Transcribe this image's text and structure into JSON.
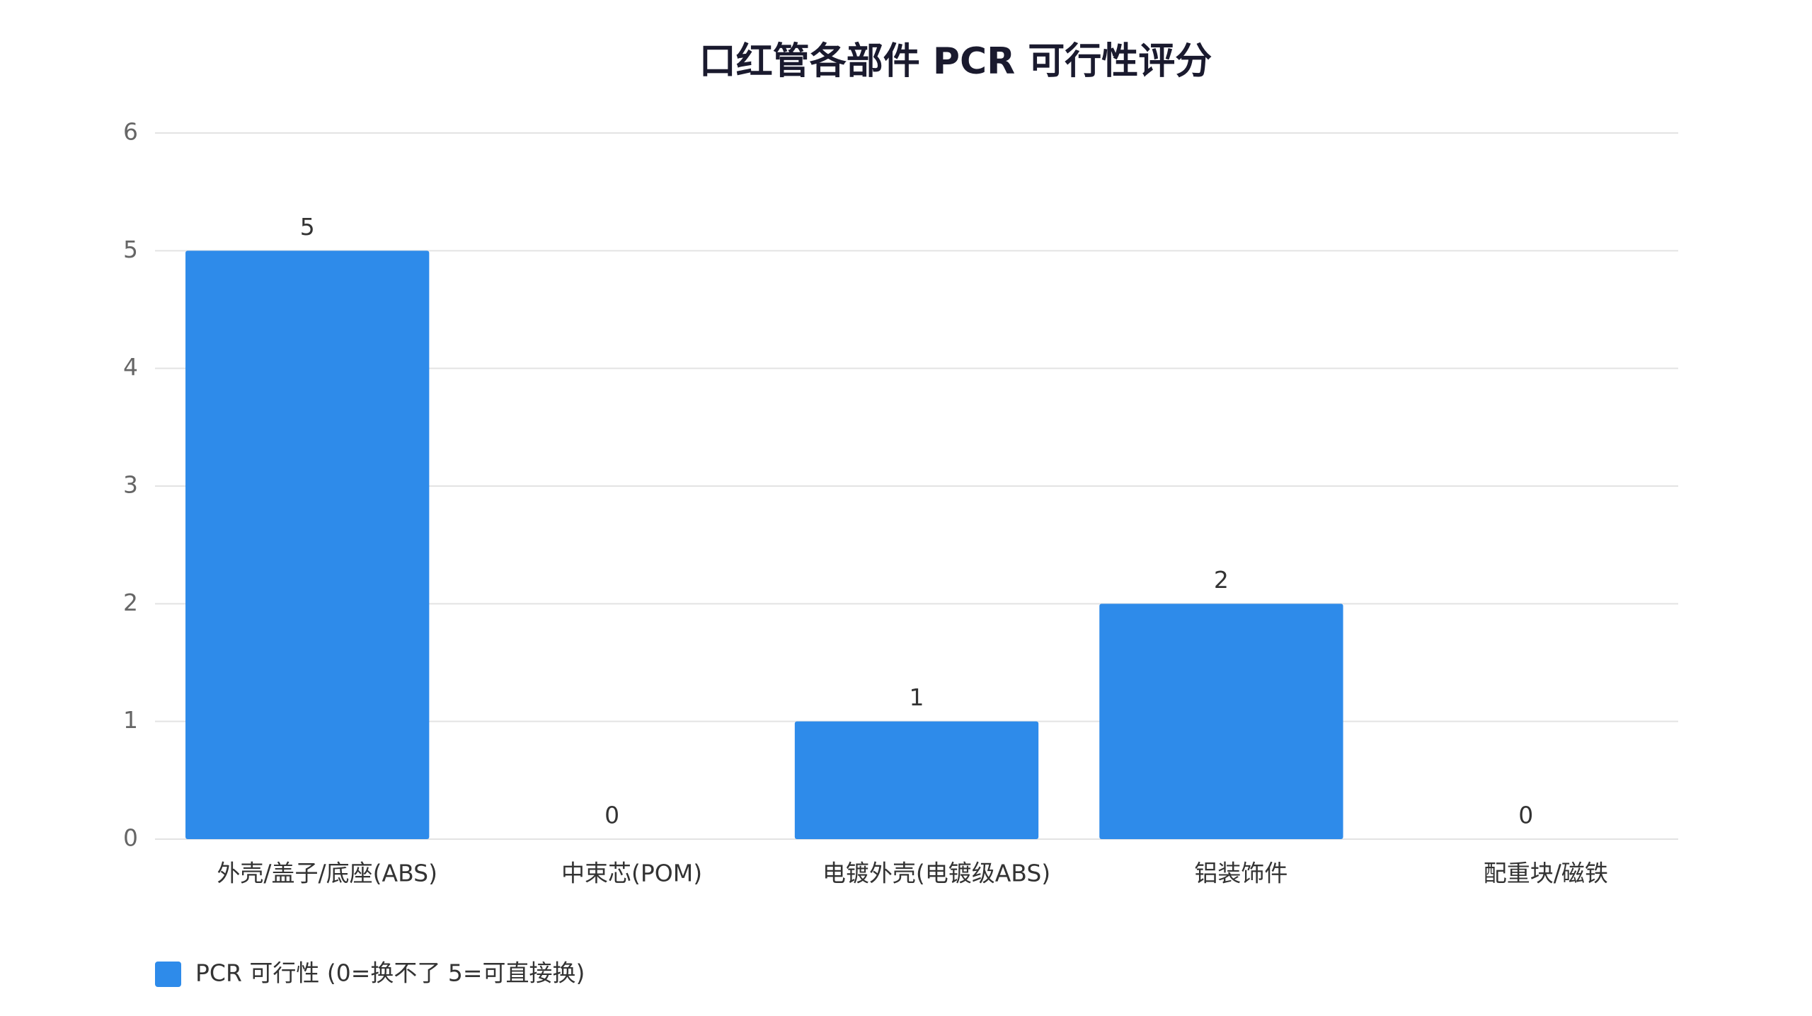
{
  "chart_data": {
    "type": "bar",
    "title": "口红管各部件 PCR 可行性评分",
    "categories": [
      "外壳/盖子/底座(ABS)",
      "中束芯(POM)",
      "电镀外壳(电镀级ABS)",
      "铝装饰件",
      "配重块/磁铁"
    ],
    "series": [
      {
        "name": "PCR 可行性 (0=换不了 5=可直接换)",
        "color": "#2e8bea",
        "values": [
          5,
          0,
          1,
          2,
          0
        ]
      }
    ],
    "ylim": [
      0,
      6
    ],
    "yticks": [
      0,
      1,
      2,
      3,
      4,
      5,
      6
    ],
    "grid": true,
    "legend": "bottom-left"
  }
}
